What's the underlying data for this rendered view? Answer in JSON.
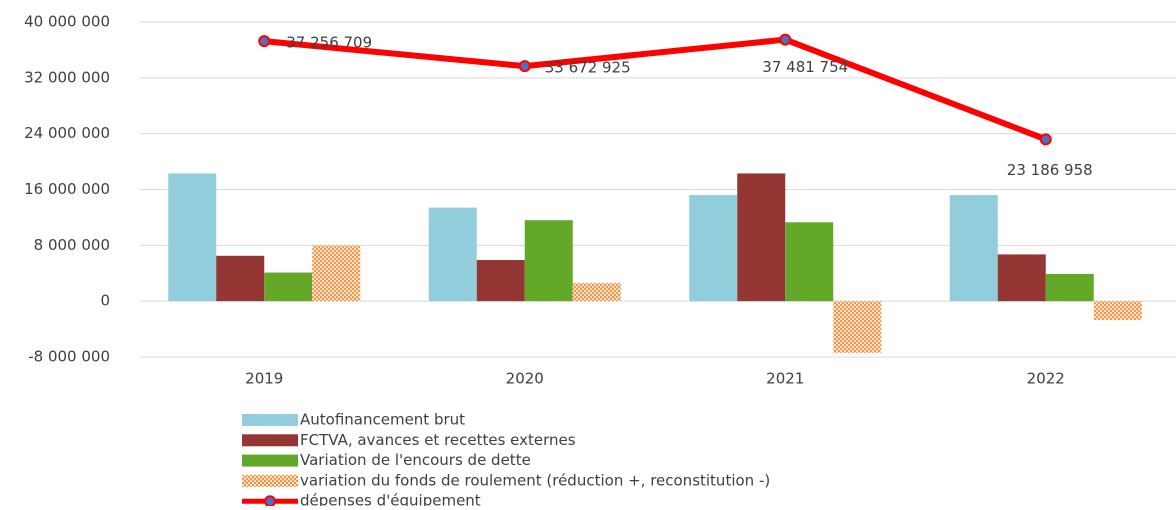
{
  "chart_data": {
    "type": "bar",
    "categories": [
      "2019",
      "2020",
      "2021",
      "2022"
    ],
    "series": [
      {
        "name": "Autofinancement brut",
        "color": "#92cddc",
        "values": [
          18300000,
          13400000,
          15200000,
          15200000
        ]
      },
      {
        "name": "FCTVA, avances et recettes externes",
        "color": "#943634",
        "values": [
          6500000,
          5900000,
          18300000,
          6700000
        ]
      },
      {
        "name": "Variation de l'encours de dette",
        "color": "#64a82a",
        "values": [
          4100000,
          11600000,
          11300000,
          3900000
        ]
      },
      {
        "name": "variation du fonds de roulement (réduction +, reconstitution -)",
        "color": "#f79646",
        "pattern": "dots",
        "values": [
          8000000,
          2600000,
          -7400000,
          -2700000
        ]
      },
      {
        "name": "dépenses d'équipement",
        "type": "line",
        "color": "#ff0000",
        "marker_color": "#4f6fc0",
        "values": [
          37256709,
          33672925,
          37481754,
          23186958
        ],
        "value_labels": [
          "37 256 709",
          "33 672 925",
          "37 481 754",
          "23 186 958"
        ]
      }
    ],
    "ylim": [
      -8000000,
      40000000
    ],
    "yticks": [
      {
        "value": -8000000,
        "label": "-8 000 000"
      },
      0,
      {
        "value": 8000000,
        "label": "8 000 000"
      },
      {
        "value": 16000000,
        "label": "16 000 000"
      },
      {
        "value": 24000000,
        "label": "24 000 000"
      },
      {
        "value": 32000000,
        "label": "32 000 000"
      },
      {
        "value": 40000000,
        "label": "40 000 000"
      }
    ],
    "grid": true,
    "legend": "bottom"
  }
}
